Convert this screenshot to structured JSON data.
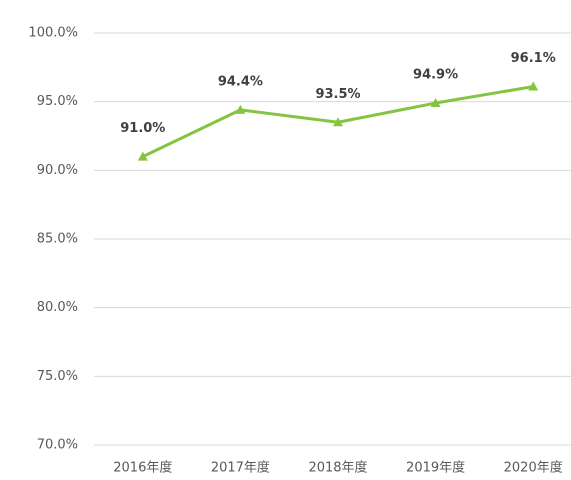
{
  "chart_data": {
    "type": "line",
    "categories": [
      "2016年度",
      "2017年度",
      "2018年度",
      "2019年度",
      "2020年度"
    ],
    "series": [
      {
        "name": null,
        "color": "#84c441",
        "values": [
          91.0,
          94.4,
          93.5,
          94.9,
          96.1
        ],
        "value_labels": [
          "91.0%",
          "94.4%",
          "93.5%",
          "94.9%",
          "96.1%"
        ]
      }
    ],
    "ylim": [
      70,
      100
    ],
    "yticks": [
      {
        "value": 70,
        "label": "70.0%"
      },
      {
        "value": 75,
        "label": "75.0%"
      },
      {
        "value": 80,
        "label": "80.0%"
      },
      {
        "value": 85,
        "label": "85.0%"
      },
      {
        "value": 90,
        "label": "90.0%"
      },
      {
        "value": 95,
        "label": "95.0%"
      },
      {
        "value": 100,
        "label": "100.0%"
      }
    ],
    "grid": true
  }
}
